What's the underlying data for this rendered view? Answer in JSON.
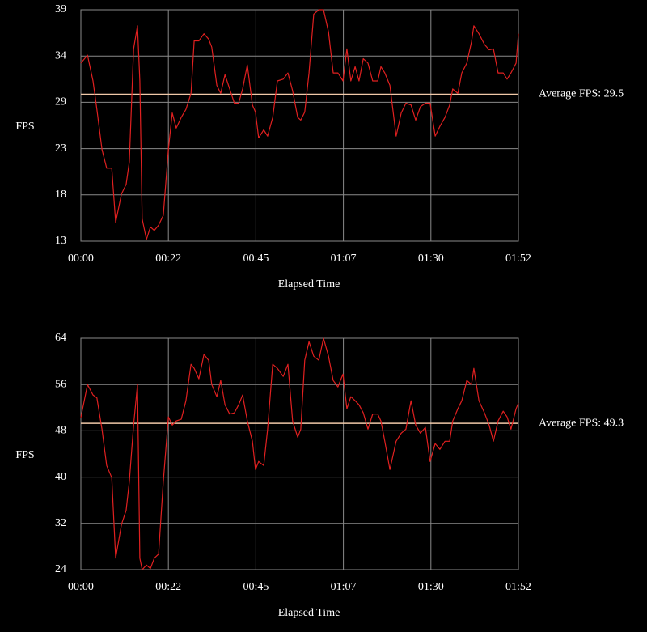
{
  "chart_data": [
    {
      "type": "line",
      "x_label": "Elapsed Time",
      "y_label": "FPS",
      "color": "#e02020",
      "grid": true,
      "xlim": [
        0,
        112
      ],
      "xticks": [
        {
          "value": 0,
          "label": "00:00"
        },
        {
          "value": 22.4,
          "label": "00:22"
        },
        {
          "value": 44.8,
          "label": "00:45"
        },
        {
          "value": 67.2,
          "label": "01:07"
        },
        {
          "value": 89.6,
          "label": "01:30"
        },
        {
          "value": 112,
          "label": "01:52"
        }
      ],
      "ylim": [
        13,
        39
      ],
      "yticks": [
        13,
        {
          "value": 18.2,
          "label": "18"
        },
        {
          "value": 23.4,
          "label": "23"
        },
        {
          "value": 28.6,
          "label": "29"
        },
        {
          "value": 33.8,
          "label": "34"
        },
        39
      ],
      "average": {
        "value": 29.5,
        "label": "Average FPS: 29.5",
        "color": "#f0c8a8"
      },
      "x": [
        0,
        1.7,
        3.1,
        4.1,
        5.4,
        6.6,
        7.9,
        8.9,
        10.4,
        11.6,
        12.4,
        13.5,
        14.5,
        15.1,
        15.7,
        16.8,
        17.8,
        18.8,
        19.9,
        21.1,
        22.4,
        23.4,
        24.4,
        25.7,
        26.9,
        28.2,
        29.0,
        30.2,
        31.5,
        32.7,
        33.5,
        34.8,
        35.8,
        36.9,
        38.1,
        39.3,
        40.4,
        41.4,
        42.6,
        43.9,
        44.7,
        45.5,
        46.8,
        47.8,
        49.1,
        50.3,
        51.8,
        53.0,
        54.2,
        55.5,
        56.3,
        57.3,
        58.4,
        59.6,
        60.9,
        62.1,
        63.4,
        64.6,
        65.8,
        67.1,
        68.1,
        69.1,
        70.2,
        71.2,
        72.3,
        73.5,
        74.7,
        76.0,
        76.8,
        77.8,
        79.1,
        80.7,
        82.0,
        83.2,
        84.5,
        85.7,
        86.9,
        88.2,
        89.4,
        90.7,
        91.9,
        93.2,
        94.4,
        95.2,
        96.5,
        97.5,
        98.8,
        100.0,
        100.6,
        101.9,
        103.3,
        104.5,
        105.6,
        106.8,
        108.1,
        109.1,
        110.1,
        111.4,
        112
      ],
      "values": [
        33.0,
        33.9,
        31.0,
        27.8,
        23.3,
        21.2,
        21.2,
        15.1,
        18.3,
        19.4,
        21.9,
        34.6,
        37.2,
        31.0,
        15.5,
        13.2,
        14.6,
        14.2,
        14.8,
        15.9,
        23.3,
        27.4,
        25.7,
        26.9,
        27.8,
        29.6,
        35.5,
        35.5,
        36.3,
        35.7,
        34.8,
        30.5,
        29.6,
        31.7,
        30.1,
        28.5,
        28.5,
        30.1,
        32.8,
        28.3,
        27.5,
        24.6,
        25.5,
        24.8,
        26.9,
        31.0,
        31.2,
        31.9,
        29.9,
        26.9,
        26.6,
        27.5,
        31.9,
        38.5,
        39.0,
        39.0,
        36.5,
        31.9,
        31.9,
        31.0,
        34.6,
        31.0,
        32.6,
        31.0,
        33.5,
        33.0,
        31.0,
        31.0,
        32.6,
        31.9,
        30.5,
        24.8,
        27.4,
        28.5,
        28.3,
        26.6,
        28.1,
        28.5,
        28.5,
        24.8,
        25.9,
        26.9,
        28.3,
        30.1,
        29.6,
        31.9,
        33.0,
        35.4,
        37.2,
        36.3,
        35.1,
        34.5,
        34.6,
        31.9,
        31.9,
        31.2,
        31.9,
        33.0,
        36.3
      ]
    },
    {
      "type": "line",
      "x_label": "Elapsed Time",
      "y_label": "FPS",
      "color": "#e02020",
      "grid": true,
      "xlim": [
        0,
        112
      ],
      "xticks": [
        {
          "value": 0,
          "label": "00:00"
        },
        {
          "value": 22.4,
          "label": "00:22"
        },
        {
          "value": 44.8,
          "label": "00:45"
        },
        {
          "value": 67.2,
          "label": "01:07"
        },
        {
          "value": 89.6,
          "label": "01:30"
        },
        {
          "value": 112,
          "label": "01:52"
        }
      ],
      "ylim": [
        24,
        64
      ],
      "yticks": [
        24,
        32,
        40,
        48,
        56,
        64
      ],
      "average": {
        "value": 49.3,
        "label": "Average FPS: 49.3",
        "color": "#f0c8a8"
      },
      "x": [
        0,
        1.7,
        3.1,
        4.1,
        5.4,
        6.6,
        7.9,
        8.9,
        10.4,
        11.6,
        12.4,
        13.5,
        14.5,
        15.1,
        15.7,
        16.8,
        17.8,
        18.8,
        19.9,
        21.1,
        22.4,
        23.4,
        24.4,
        25.7,
        26.9,
        28.2,
        29.0,
        30.2,
        31.5,
        32.7,
        33.5,
        34.8,
        35.8,
        36.9,
        38.1,
        39.3,
        40.4,
        41.4,
        42.6,
        43.9,
        44.7,
        45.5,
        46.8,
        47.8,
        49.1,
        50.3,
        51.8,
        53.0,
        54.2,
        55.5,
        56.3,
        57.3,
        58.4,
        59.6,
        60.9,
        62.1,
        63.4,
        64.6,
        65.8,
        67.1,
        68.1,
        69.1,
        70.2,
        71.2,
        72.3,
        73.5,
        74.7,
        76.0,
        76.8,
        77.8,
        79.1,
        80.7,
        82.0,
        83.2,
        84.5,
        85.7,
        86.9,
        88.2,
        89.4,
        90.7,
        91.9,
        93.2,
        94.4,
        95.2,
        96.5,
        97.5,
        98.8,
        100.0,
        100.6,
        101.9,
        103.3,
        104.5,
        105.6,
        106.8,
        108.1,
        109.1,
        110.1,
        111.4,
        112
      ],
      "values": [
        50.3,
        56.0,
        54.2,
        53.7,
        48.3,
        42.0,
        39.9,
        26.0,
        31.8,
        34.3,
        39.2,
        49.0,
        56.0,
        26.0,
        24.0,
        24.8,
        24.2,
        26.0,
        26.7,
        39.2,
        50.4,
        49.0,
        49.7,
        50.0,
        53.2,
        59.5,
        58.8,
        57.0,
        61.2,
        60.2,
        56.0,
        53.9,
        56.7,
        52.5,
        50.9,
        51.1,
        52.5,
        54.2,
        49.7,
        46.2,
        41.3,
        42.7,
        42.0,
        48.3,
        59.5,
        58.8,
        57.4,
        59.5,
        49.7,
        46.9,
        48.3,
        60.2,
        63.4,
        60.9,
        60.2,
        64.0,
        60.9,
        56.7,
        55.6,
        57.8,
        51.8,
        53.9,
        53.2,
        52.5,
        51.1,
        48.3,
        50.9,
        50.9,
        49.7,
        46.2,
        41.3,
        46.2,
        47.6,
        48.3,
        53.2,
        49.0,
        47.6,
        48.6,
        42.7,
        45.8,
        44.8,
        46.2,
        46.2,
        49.7,
        51.8,
        53.2,
        56.7,
        56.0,
        58.8,
        53.2,
        51.1,
        49.0,
        46.2,
        49.7,
        51.4,
        50.4,
        48.3,
        51.8,
        52.8
      ]
    }
  ]
}
